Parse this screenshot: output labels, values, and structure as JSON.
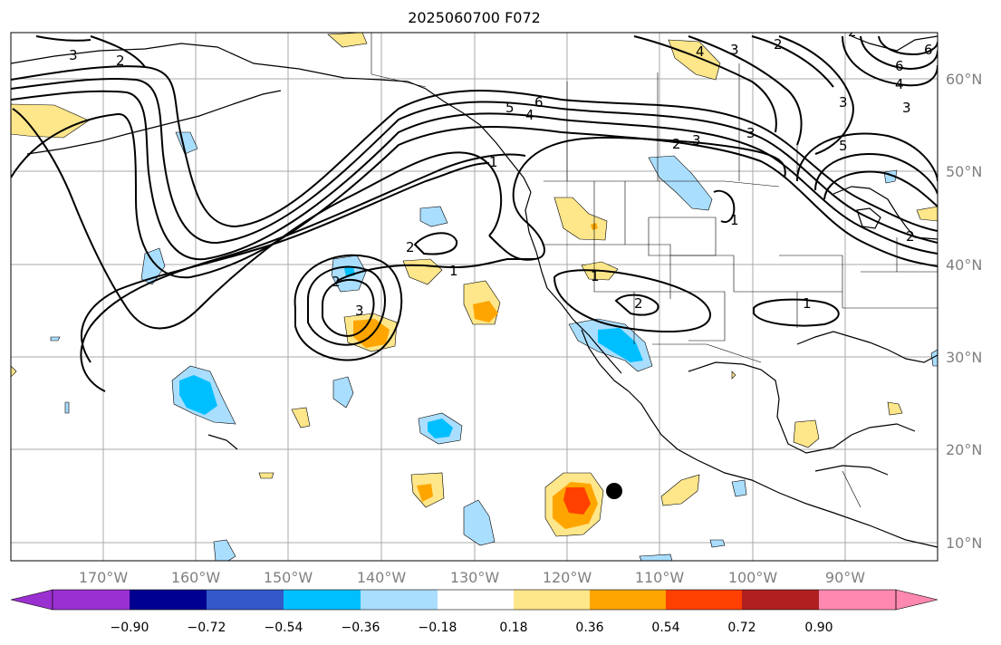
{
  "title": "2025060700 F072",
  "lon_labels": [
    "170°W",
    "160°W",
    "150°W",
    "140°W",
    "130°W",
    "120°W",
    "110°W",
    "100°W",
    "90°W"
  ],
  "lat_labels": [
    "60°N",
    "50°N",
    "40°N",
    "30°N",
    "20°N",
    "10°N"
  ],
  "colorbar": {
    "colors": [
      "#9b30d0",
      "#000090",
      "#3358c8",
      "#00bfff",
      "#aadeff",
      "#ffffff",
      "#fee68a",
      "#ffa500",
      "#ff4000",
      "#b02020",
      "#ff88b0"
    ],
    "ticks": [
      "−0.90",
      "−0.72",
      "−0.54",
      "−0.36",
      "−0.18",
      "0.18",
      "0.36",
      "0.54",
      "0.72",
      "0.90"
    ]
  },
  "contour_labels": [
    "3",
    "2",
    "6",
    "5",
    "4",
    "2",
    "3",
    "2",
    "4",
    "3",
    "2",
    "6",
    "4",
    "3",
    "3",
    "3",
    "5",
    "2",
    "1",
    "2",
    "2",
    "3",
    "1",
    "1",
    "2",
    "1",
    "6",
    "1"
  ]
}
